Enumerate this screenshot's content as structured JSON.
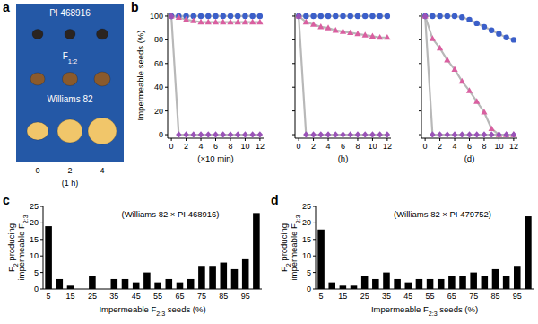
{
  "panel_labels": [
    "a",
    "b",
    "c",
    "d"
  ],
  "panel_a": {
    "rows": [
      "PI 468916",
      "F1:2",
      "Williams 82"
    ],
    "times": [
      0,
      2,
      4
    ],
    "time_label": "(1 h)"
  },
  "chart_data": [
    {
      "type": "line",
      "y_label": "Impermeable seeds (%)",
      "x_label": "(×10 min)",
      "x": [
        0,
        1,
        2,
        3,
        4,
        5,
        6,
        7,
        8,
        9,
        10,
        11,
        12
      ],
      "xlim": [
        -0.5,
        12.5
      ],
      "xticks": [
        0,
        2,
        4,
        6,
        8,
        10,
        12
      ],
      "ylim": [
        -3,
        103
      ],
      "yticks": [
        0,
        20,
        40,
        60,
        80,
        100
      ],
      "series": [
        {
          "color": "#3b5fc9",
          "marker": "circle",
          "values": [
            100,
            100,
            100,
            100,
            100,
            100,
            100,
            100,
            100,
            100,
            100,
            100,
            100
          ]
        },
        {
          "color": "#d95fa0",
          "marker": "triangle",
          "values": [
            100,
            99,
            97,
            96,
            95,
            95,
            95,
            95,
            95,
            95,
            95,
            95,
            95
          ]
        },
        {
          "color": "#9a52b8",
          "marker": "diamond",
          "values": [
            100,
            0,
            0,
            0,
            0,
            0,
            0,
            0,
            0,
            0,
            0,
            0,
            0
          ]
        }
      ]
    },
    {
      "type": "line",
      "x_label": "(h)",
      "tick_labels": "x",
      "x": [
        0,
        1,
        2,
        3,
        4,
        5,
        6,
        7,
        8,
        9,
        10,
        11,
        12
      ],
      "xlim": [
        -0.5,
        12.5
      ],
      "xticks": [
        0,
        2,
        4,
        6,
        8,
        10,
        12
      ],
      "ylim": [
        -3,
        103
      ],
      "yticks": [
        0,
        20,
        40,
        60,
        80,
        100
      ],
      "series": [
        {
          "color": "#3b5fc9",
          "marker": "circle",
          "values": [
            100,
            100,
            100,
            100,
            100,
            100,
            100,
            100,
            100,
            100,
            100,
            100,
            100
          ]
        },
        {
          "color": "#d95fa0",
          "marker": "triangle",
          "values": [
            100,
            95,
            93,
            91,
            90,
            88,
            87,
            86,
            85,
            84,
            83,
            82,
            82
          ]
        },
        {
          "color": "#9a52b8",
          "marker": "diamond",
          "values": [
            100,
            0,
            0,
            0,
            0,
            0,
            0,
            0,
            0,
            0,
            0,
            0,
            0
          ]
        }
      ]
    },
    {
      "type": "line",
      "x_label": "(d)",
      "tick_labels": "x",
      "x": [
        0,
        1,
        2,
        3,
        4,
        5,
        6,
        7,
        8,
        9,
        10,
        11,
        12
      ],
      "xlim": [
        -0.5,
        12.5
      ],
      "xticks": [
        0,
        2,
        4,
        6,
        8,
        10,
        12
      ],
      "ylim": [
        -3,
        103
      ],
      "yticks": [
        0,
        20,
        40,
        60,
        80,
        100
      ],
      "series": [
        {
          "color": "#3b5fc9",
          "marker": "circle",
          "values": [
            100,
            100,
            100,
            100,
            100,
            99,
            97,
            94,
            91,
            88,
            85,
            82,
            80
          ]
        },
        {
          "color": "#d95fa0",
          "marker": "triangle",
          "values": [
            100,
            81,
            73,
            63,
            55,
            45,
            37,
            28,
            19,
            5,
            0,
            0,
            0
          ]
        },
        {
          "color": "#9a52b8",
          "marker": "diamond",
          "values": [
            100,
            0,
            0,
            0,
            0,
            0,
            0,
            0,
            0,
            0,
            0,
            0,
            0
          ]
        }
      ]
    },
    {
      "type": "bar",
      "title": "(Williams 82 × PI 468916)",
      "x_label": "Impermeable F2:3 seeds (%)",
      "y_label": [
        "F2 producing",
        "impermeable F2:3"
      ],
      "categories": [
        "5",
        null,
        "15",
        null,
        "25",
        null,
        "35",
        null,
        "45",
        null,
        "55",
        null,
        "65",
        null,
        "75",
        null,
        "85",
        null,
        "95",
        null
      ],
      "values": [
        19,
        3,
        1,
        0,
        4,
        0,
        3,
        3,
        2,
        5,
        2,
        3,
        2,
        3,
        7,
        7,
        8,
        6,
        9,
        23
      ],
      "color": "#000000",
      "ylim": [
        0,
        25
      ],
      "yticks": [
        0,
        5,
        10,
        15,
        20,
        25
      ]
    },
    {
      "type": "bar",
      "title": "(Williams 82 × PI 479752)",
      "x_label": "Impermeable F2:3 seeds (%)",
      "y_label": [
        "F2 producing",
        "impermeable F2:3"
      ],
      "categories": [
        "5",
        null,
        "15",
        null,
        "25",
        null,
        "35",
        null,
        "45",
        null,
        "55",
        null,
        "65",
        null,
        "75",
        null,
        "85",
        null,
        "95",
        null
      ],
      "values": [
        18,
        2,
        1,
        1,
        4,
        3,
        5,
        3,
        2,
        3,
        3,
        3,
        4,
        4,
        5,
        4,
        6,
        4,
        7,
        22
      ],
      "color": "#000000",
      "ylim": [
        0,
        25
      ],
      "yticks": [
        0,
        5,
        10,
        15,
        20,
        25
      ]
    }
  ]
}
